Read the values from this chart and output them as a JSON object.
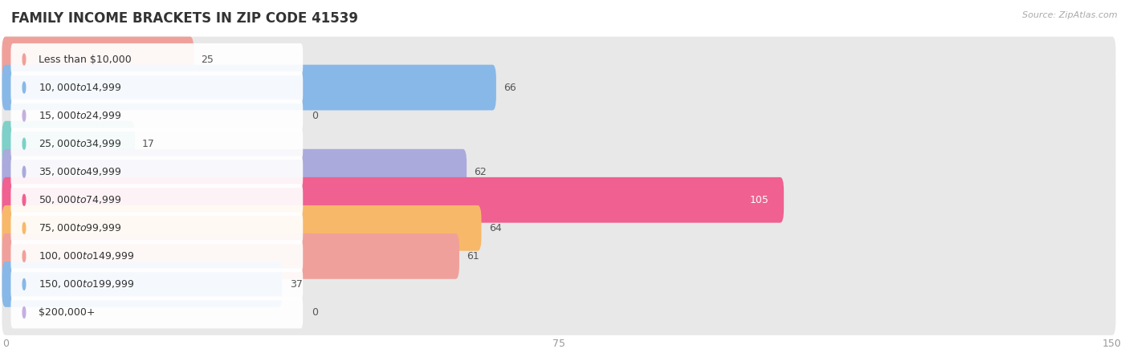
{
  "title": "FAMILY INCOME BRACKETS IN ZIP CODE 41539",
  "source": "Source: ZipAtlas.com",
  "categories": [
    "Less than $10,000",
    "$10,000 to $14,999",
    "$15,000 to $24,999",
    "$25,000 to $34,999",
    "$35,000 to $49,999",
    "$50,000 to $74,999",
    "$75,000 to $99,999",
    "$100,000 to $149,999",
    "$150,000 to $199,999",
    "$200,000+"
  ],
  "values": [
    25,
    66,
    0,
    17,
    62,
    105,
    64,
    61,
    37,
    0
  ],
  "bar_colors": [
    "#f0a09a",
    "#88b8e8",
    "#c4b0e0",
    "#7ed0c8",
    "#aaaadc",
    "#f06090",
    "#f8b86a",
    "#f0a09a",
    "#88b8e8",
    "#c4b0e0"
  ],
  "label_bg_colors": [
    "#f0a09a",
    "#88b8e8",
    "#c4b0e0",
    "#7ed0c8",
    "#aaaadc",
    "#f06090",
    "#f8b86a",
    "#f0a09a",
    "#88b8e8",
    "#c4b0e0"
  ],
  "xlim_max": 150,
  "xticks": [
    0,
    75,
    150
  ],
  "bg_color": "#ffffff",
  "plot_bg_color": "#f0f0f0",
  "bar_bg_color": "#e8e8e8",
  "title_fontsize": 12,
  "label_fontsize": 9,
  "value_fontsize": 9,
  "bar_height": 0.62
}
